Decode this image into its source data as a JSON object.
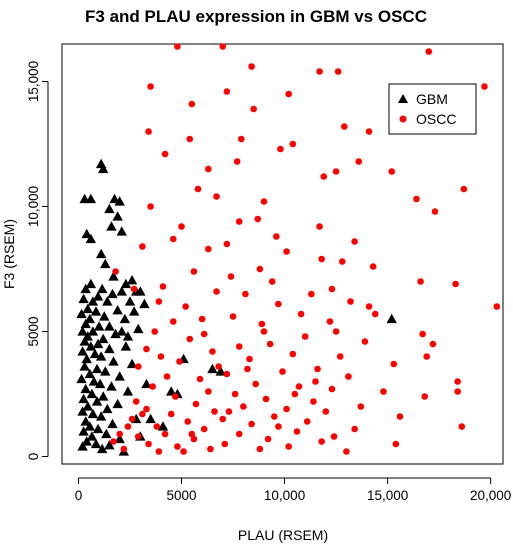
{
  "chart_data": {
    "type": "scatter",
    "title": "F3 and PLAU expression in GBM vs OSCC",
    "xlabel": "PLAU (RSEM)",
    "ylabel": "F3 (RSEM)",
    "xlim": [
      -800,
      20600
    ],
    "ylim": [
      -300,
      16500
    ],
    "x_ticks": [
      0,
      5000,
      10000,
      15000,
      20000
    ],
    "x_tick_labels": [
      "0",
      "5000",
      "10,000",
      "15,000",
      "20,000"
    ],
    "y_ticks": [
      0,
      5000,
      10000,
      15000
    ],
    "y_tick_labels": [
      "0",
      "5000",
      "10,000",
      "15,000"
    ],
    "grid": false,
    "legend_position": "top-right",
    "series": [
      {
        "name": "GBM",
        "color": "#000000",
        "marker": "triangle",
        "points": [
          [
            1200,
            11500
          ],
          [
            1100,
            11700
          ],
          [
            300,
            10300
          ],
          [
            600,
            10300
          ],
          [
            1750,
            10300
          ],
          [
            2000,
            10200
          ],
          [
            1500,
            9900
          ],
          [
            1900,
            9600
          ],
          [
            1600,
            9200
          ],
          [
            2100,
            9000
          ],
          [
            400,
            8900
          ],
          [
            600,
            8700
          ],
          [
            1100,
            8100
          ],
          [
            1300,
            7700
          ],
          [
            1700,
            7200
          ],
          [
            2600,
            7050
          ],
          [
            2300,
            6900
          ],
          [
            600,
            6900
          ],
          [
            350,
            6700
          ],
          [
            1150,
            6700
          ],
          [
            2100,
            6600
          ],
          [
            3000,
            6600
          ],
          [
            2800,
            6600
          ],
          [
            1650,
            6500
          ],
          [
            950,
            6400
          ],
          [
            250,
            6300
          ],
          [
            700,
            6200
          ],
          [
            1400,
            6200
          ],
          [
            2500,
            6200
          ],
          [
            3200,
            6100
          ],
          [
            450,
            5900
          ],
          [
            1900,
            5850
          ],
          [
            850,
            5800
          ],
          [
            2700,
            5800
          ],
          [
            150,
            5700
          ],
          [
            1250,
            5600
          ],
          [
            2250,
            5500
          ],
          [
            550,
            5500
          ],
          [
            350,
            5300
          ],
          [
            1000,
            5200
          ],
          [
            1500,
            5200
          ],
          [
            2900,
            5100
          ],
          [
            200,
            5000
          ],
          [
            700,
            5000
          ],
          [
            2100,
            5000
          ],
          [
            1800,
            4900
          ],
          [
            450,
            4800
          ],
          [
            1200,
            4700
          ],
          [
            300,
            4600
          ],
          [
            950,
            4500
          ],
          [
            2300,
            4400
          ],
          [
            600,
            4400
          ],
          [
            1500,
            4300
          ],
          [
            200,
            4200
          ],
          [
            800,
            4100
          ],
          [
            1100,
            4000
          ],
          [
            400,
            3900
          ],
          [
            1700,
            3800
          ],
          [
            2600,
            3700
          ],
          [
            300,
            3600
          ],
          [
            900,
            3500
          ],
          [
            1300,
            3400
          ],
          [
            550,
            3300
          ],
          [
            2000,
            3200
          ],
          [
            150,
            3100
          ],
          [
            750,
            3000
          ],
          [
            1050,
            2900
          ],
          [
            1600,
            2800
          ],
          [
            350,
            2700
          ],
          [
            2400,
            2600
          ],
          [
            650,
            2500
          ],
          [
            1200,
            2400
          ],
          [
            250,
            2300
          ],
          [
            900,
            2200
          ],
          [
            1900,
            2100
          ],
          [
            450,
            2000
          ],
          [
            1400,
            1900
          ],
          [
            200,
            1800
          ],
          [
            700,
            1700
          ],
          [
            1100,
            1600
          ],
          [
            2800,
            1500
          ],
          [
            350,
            1400
          ],
          [
            1650,
            1300
          ],
          [
            550,
            1200
          ],
          [
            950,
            1100
          ],
          [
            250,
            1000
          ],
          [
            1350,
            900
          ],
          [
            650,
            800
          ],
          [
            2000,
            700
          ],
          [
            400,
            600
          ],
          [
            850,
            500
          ],
          [
            200,
            400
          ],
          [
            1150,
            300
          ],
          [
            1500,
            450
          ],
          [
            2200,
            200
          ],
          [
            3000,
            800
          ],
          [
            3500,
            1500
          ],
          [
            4100,
            1200
          ],
          [
            4500,
            2600
          ],
          [
            4800,
            2500
          ],
          [
            6500,
            3500
          ],
          [
            6900,
            3400
          ],
          [
            5100,
            3900
          ],
          [
            15200,
            5500
          ],
          [
            2400,
            4800
          ],
          [
            3300,
            2900
          ]
        ]
      },
      {
        "name": "OSCC",
        "color": "#ff0000",
        "marker": "circle",
        "points": [
          [
            4800,
            16400
          ],
          [
            7000,
            16400
          ],
          [
            17000,
            16200
          ],
          [
            8400,
            15600
          ],
          [
            11700,
            15400
          ],
          [
            12600,
            15400
          ],
          [
            3500,
            14800
          ],
          [
            7200,
            14600
          ],
          [
            19700,
            14800
          ],
          [
            10200,
            14500
          ],
          [
            5500,
            14100
          ],
          [
            8500,
            13900
          ],
          [
            12900,
            13200
          ],
          [
            14100,
            13000
          ],
          [
            3400,
            13000
          ],
          [
            7900,
            12700
          ],
          [
            5400,
            12700
          ],
          [
            10400,
            12500
          ],
          [
            9800,
            12300
          ],
          [
            4200,
            12100
          ],
          [
            7700,
            11800
          ],
          [
            13600,
            11800
          ],
          [
            6300,
            11500
          ],
          [
            11900,
            11200
          ],
          [
            12500,
            11400
          ],
          [
            15200,
            11400
          ],
          [
            18700,
            10700
          ],
          [
            5800,
            10700
          ],
          [
            6700,
            10400
          ],
          [
            9000,
            10200
          ],
          [
            3500,
            10000
          ],
          [
            16400,
            10300
          ],
          [
            17300,
            9800
          ],
          [
            7800,
            9400
          ],
          [
            8700,
            9500
          ],
          [
            5000,
            9200
          ],
          [
            11700,
            9200
          ],
          [
            9600,
            8800
          ],
          [
            13400,
            8600
          ],
          [
            4600,
            8700
          ],
          [
            7200,
            8500
          ],
          [
            3100,
            8400
          ],
          [
            10100,
            8200
          ],
          [
            11800,
            7900
          ],
          [
            6300,
            8300
          ],
          [
            12800,
            7800
          ],
          [
            14300,
            7600
          ],
          [
            8800,
            7500
          ],
          [
            5600,
            7400
          ],
          [
            7400,
            7200
          ],
          [
            9400,
            7000
          ],
          [
            16600,
            7000
          ],
          [
            4100,
            6800
          ],
          [
            18300,
            6900
          ],
          [
            6700,
            6600
          ],
          [
            8100,
            6500
          ],
          [
            11300,
            6500
          ],
          [
            13200,
            6200
          ],
          [
            2700,
            6700
          ],
          [
            3900,
            6200
          ],
          [
            5200,
            6000
          ],
          [
            9700,
            6100
          ],
          [
            20300,
            6000
          ],
          [
            10800,
            5700
          ],
          [
            14400,
            5700
          ],
          [
            7500,
            5600
          ],
          [
            4600,
            5400
          ],
          [
            12200,
            5400
          ],
          [
            8900,
            5300
          ],
          [
            3700,
            5000
          ],
          [
            6100,
            4900
          ],
          [
            16700,
            4900
          ],
          [
            11000,
            4800
          ],
          [
            5400,
            4700
          ],
          [
            13900,
            4600
          ],
          [
            9300,
            4500
          ],
          [
            17200,
            4500
          ],
          [
            7800,
            4400
          ],
          [
            3300,
            4300
          ],
          [
            6500,
            4200
          ],
          [
            10400,
            4100
          ],
          [
            12700,
            4000
          ],
          [
            8300,
            3900
          ],
          [
            4900,
            3800
          ],
          [
            15300,
            3700
          ],
          [
            2900,
            3600
          ],
          [
            6800,
            3600
          ],
          [
            11600,
            3500
          ],
          [
            9900,
            3400
          ],
          [
            7200,
            3300
          ],
          [
            13100,
            3200
          ],
          [
            4300,
            3200
          ],
          [
            5900,
            3100
          ],
          [
            18400,
            3000
          ],
          [
            8600,
            2900
          ],
          [
            3600,
            2800
          ],
          [
            10700,
            2800
          ],
          [
            12300,
            2700
          ],
          [
            6300,
            2600
          ],
          [
            14800,
            2600
          ],
          [
            7600,
            2500
          ],
          [
            16800,
            2400
          ],
          [
            4700,
            2400
          ],
          [
            9100,
            2300
          ],
          [
            2800,
            2200
          ],
          [
            11400,
            2200
          ],
          [
            5700,
            2100
          ],
          [
            13700,
            2000
          ],
          [
            8000,
            2000
          ],
          [
            3300,
            1900
          ],
          [
            10100,
            1900
          ],
          [
            6600,
            1800
          ],
          [
            12000,
            1800
          ],
          [
            4500,
            1700
          ],
          [
            15600,
            1600
          ],
          [
            9500,
            1600
          ],
          [
            7000,
            1500
          ],
          [
            2600,
            1500
          ],
          [
            11100,
            1400
          ],
          [
            5300,
            1400
          ],
          [
            18600,
            1200
          ],
          [
            8400,
            1300
          ],
          [
            3800,
            1200
          ],
          [
            13400,
            1100
          ],
          [
            6100,
            1100
          ],
          [
            10600,
            1000
          ],
          [
            4200,
            900
          ],
          [
            7800,
            900
          ],
          [
            12400,
            800
          ],
          [
            2900,
            800
          ],
          [
            9200,
            700
          ],
          [
            5600,
            700
          ],
          [
            15400,
            500
          ],
          [
            3400,
            500
          ],
          [
            7100,
            500
          ],
          [
            11800,
            600
          ],
          [
            4800,
            400
          ],
          [
            8800,
            300
          ],
          [
            2200,
            300
          ],
          [
            6400,
            300
          ],
          [
            10200,
            400
          ],
          [
            3900,
            200
          ],
          [
            13000,
            200
          ],
          [
            5100,
            200
          ],
          [
            1700,
            600
          ],
          [
            2000,
            900
          ],
          [
            2400,
            1200
          ],
          [
            18400,
            2600
          ],
          [
            16900,
            4000
          ],
          [
            14100,
            6000
          ],
          [
            9000,
            5000
          ],
          [
            12500,
            5000
          ],
          [
            6000,
            5500
          ],
          [
            4000,
            4000
          ],
          [
            8200,
            3500
          ],
          [
            10500,
            2500
          ],
          [
            7300,
            1800
          ],
          [
            5500,
            900
          ],
          [
            3100,
            1700
          ],
          [
            9700,
            1200
          ],
          [
            11500,
            3000
          ],
          [
            12300,
            6700
          ],
          [
            1800,
            7400
          ]
        ]
      }
    ]
  }
}
